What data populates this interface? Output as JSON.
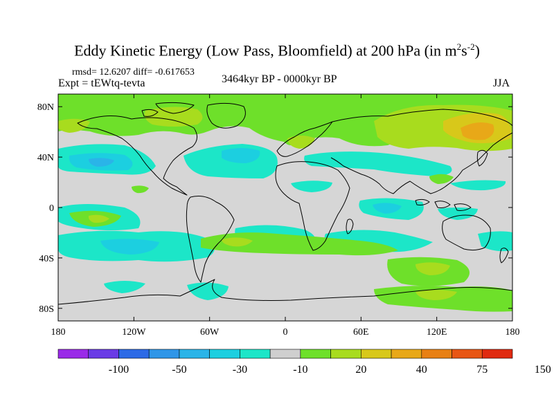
{
  "title": {
    "main": "Eddy Kinetic Energy (Low Pass, Bloomfield) at 200 hPa (in m",
    "sup1": "2",
    "mid": "s",
    "sup2": "-2",
    "close": ")"
  },
  "stats": "rmsd= 12.6207 diff= -0.617653",
  "experiment": "Expt = tEWtq-tevta",
  "period": "3464kyr BP - 0000kyr BP",
  "season": "JJA",
  "map": {
    "type": "filled-contour difference map",
    "projection": "cylindrical equidistant",
    "background_color": "#d6d6d6",
    "lon_ticks": [
      "180",
      "120W",
      "60W",
      "0",
      "60E",
      "120E",
      "180"
    ],
    "lat_ticks": [
      "80N",
      "40N",
      "0",
      "40S",
      "80S"
    ]
  },
  "colorbar": {
    "colors": [
      "#9a2ae8",
      "#6a3be6",
      "#2c6ae6",
      "#2f96e8",
      "#2ab4e8",
      "#1ccfe0",
      "#1ce6c8",
      "#cfcfcf",
      "#6ee02a",
      "#a8dc1e",
      "#d8c81a",
      "#e8a818",
      "#e88014",
      "#e85614",
      "#e02a10"
    ],
    "labels": [
      "-100",
      "-50",
      "-30",
      "-10",
      "20",
      "40",
      "75",
      "150"
    ]
  }
}
